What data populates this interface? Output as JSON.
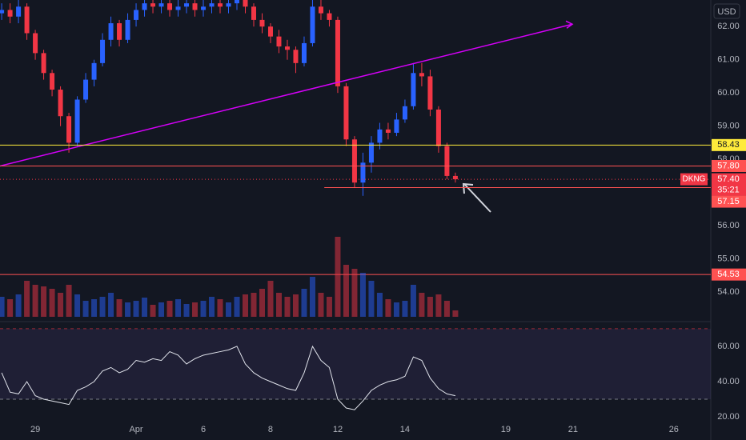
{
  "chart_data": [
    {
      "type": "candlestick",
      "symbol": "DKNG",
      "currency": "USD",
      "countdown": "35:21",
      "x": [
        -1,
        -0.75,
        -0.5,
        -0.25,
        0,
        0.25,
        0.5,
        0.75,
        1,
        1.25,
        1.5,
        1.75,
        2,
        2.25,
        2.5,
        2.75,
        3,
        3.25,
        3.5,
        3.75,
        4,
        4.25,
        4.5,
        4.75,
        5,
        5.25,
        5.5,
        5.75,
        6,
        6.25,
        6.5,
        6.75,
        7,
        7.25,
        7.5,
        7.75,
        8,
        8.25,
        8.5,
        8.75,
        9,
        9.25,
        9.5,
        9.75,
        10,
        10.25,
        10.5,
        10.75,
        11,
        11.25,
        11.5,
        11.75,
        12,
        12.25,
        12.5
      ],
      "open": [
        62.4,
        62.5,
        62.3,
        62.6,
        61.8,
        61.2,
        60.6,
        60.1,
        59.3,
        58.5,
        59.8,
        60.4,
        60.9,
        61.6,
        62.1,
        61.6,
        62.2,
        62.5,
        62.7,
        62.6,
        62.7,
        62.5,
        62.6,
        62.7,
        62.5,
        62.6,
        62.7,
        62.6,
        62.7,
        62.8,
        62.6,
        62.2,
        62.0,
        61.7,
        61.4,
        61.3,
        60.9,
        61.5,
        62.6,
        62.4,
        62.2,
        60.2,
        58.6,
        57.3,
        57.9,
        58.5,
        58.9,
        58.8,
        59.2,
        59.6,
        60.6,
        60.5,
        59.5,
        58.4,
        57.5
      ],
      "high": [
        62.7,
        62.7,
        62.8,
        62.7,
        61.9,
        61.3,
        60.7,
        60.2,
        59.4,
        59.9,
        60.6,
        61.0,
        61.8,
        62.3,
        62.2,
        62.4,
        62.7,
        62.9,
        62.9,
        62.9,
        62.9,
        62.8,
        62.9,
        62.9,
        62.8,
        62.9,
        62.9,
        62.9,
        63.0,
        62.9,
        62.7,
        62.4,
        62.1,
        61.9,
        61.6,
        61.4,
        61.7,
        62.8,
        62.8,
        62.5,
        62.3,
        60.3,
        58.7,
        58.2,
        58.7,
        59.1,
        59.1,
        59.4,
        59.8,
        60.9,
        60.9,
        60.7,
        59.6,
        58.5,
        57.6
      ],
      "low": [
        62.2,
        62.1,
        62.1,
        61.6,
        61.0,
        60.4,
        59.9,
        59.0,
        58.2,
        58.4,
        59.7,
        60.2,
        60.8,
        61.4,
        61.4,
        61.5,
        62.0,
        62.3,
        62.4,
        62.4,
        62.3,
        62.3,
        62.4,
        62.3,
        62.3,
        62.4,
        62.4,
        62.4,
        62.5,
        62.4,
        62.0,
        61.8,
        61.5,
        61.2,
        61.0,
        60.6,
        60.8,
        61.4,
        62.2,
        62.0,
        60.0,
        58.4,
        57.15,
        56.9,
        57.6,
        58.3,
        58.6,
        58.7,
        59.1,
        59.5,
        60.2,
        59.3,
        58.2,
        57.4,
        57.3
      ],
      "close": [
        62.5,
        62.3,
        62.6,
        61.8,
        61.2,
        60.6,
        60.1,
        59.3,
        58.5,
        59.8,
        60.4,
        60.9,
        61.6,
        62.1,
        61.6,
        62.2,
        62.5,
        62.7,
        62.6,
        62.7,
        62.5,
        62.6,
        62.7,
        62.5,
        62.6,
        62.7,
        62.6,
        62.7,
        62.8,
        62.6,
        62.2,
        62.0,
        61.7,
        61.4,
        61.3,
        60.9,
        61.5,
        62.6,
        62.4,
        62.2,
        60.2,
        58.6,
        57.3,
        57.9,
        58.5,
        58.9,
        58.8,
        59.2,
        59.6,
        60.6,
        60.5,
        59.5,
        58.4,
        57.5,
        57.4
      ],
      "colors": {
        "up": "#2962ff",
        "down": "#f23645"
      },
      "last_price": {
        "value": 57.4,
        "label": "57.40"
      },
      "xlim": [
        -1.05,
        20.1
      ],
      "xticks": [
        {
          "value": 0,
          "label": "29"
        },
        {
          "value": 3,
          "label": "Apr"
        },
        {
          "value": 5,
          "label": "6"
        },
        {
          "value": 7,
          "label": "8"
        },
        {
          "value": 9,
          "label": "12"
        },
        {
          "value": 11,
          "label": "14"
        },
        {
          "value": 14,
          "label": "19"
        },
        {
          "value": 16,
          "label": "21"
        },
        {
          "value": 19,
          "label": "26"
        }
      ],
      "ylim": [
        53.16,
        62.8
      ],
      "yticks": [
        {
          "value": 54,
          "label": "54.00"
        },
        {
          "value": 55,
          "label": "55.00"
        },
        {
          "value": 56,
          "label": "56.00"
        },
        {
          "value": 58,
          "label": "58.00"
        },
        {
          "value": 59,
          "label": "59.00"
        },
        {
          "value": 60,
          "label": "60.00"
        },
        {
          "value": 61,
          "label": "61.00"
        },
        {
          "value": 62,
          "label": "62.00"
        }
      ],
      "levels": [
        {
          "value": 58.43,
          "label": "58.43",
          "color": "#ffeb3b"
        },
        {
          "value": 57.8,
          "label": "57.80",
          "color": "#ff5252"
        },
        {
          "value": 57.15,
          "label": "57.15",
          "color": "#ff5252",
          "from": 8.6
        },
        {
          "value": 54.53,
          "label": "54.53",
          "color": "#ff5252"
        }
      ],
      "trendline": {
        "x": [
          -1.05,
          15.98
        ],
        "y": [
          57.8,
          62.07
        ],
        "color": "#d500f9"
      }
    },
    {
      "type": "bar",
      "values": [
        25,
        22,
        28,
        45,
        40,
        38,
        35,
        30,
        40,
        28,
        20,
        22,
        25,
        30,
        22,
        18,
        20,
        24,
        15,
        18,
        20,
        22,
        16,
        18,
        20,
        25,
        22,
        18,
        25,
        28,
        30,
        35,
        45,
        30,
        25,
        28,
        35,
        50,
        30,
        25,
        100,
        65,
        60,
        55,
        45,
        30,
        22,
        18,
        20,
        40,
        30,
        25,
        28,
        20,
        8
      ],
      "ylim": [
        0,
        110
      ]
    },
    {
      "type": "line",
      "color": "#e0e3eb",
      "values": [
        45,
        34,
        33,
        40,
        32,
        30,
        29,
        28,
        27,
        35,
        37,
        40,
        46,
        48,
        45,
        47,
        52,
        51,
        53,
        52,
        57,
        55,
        50,
        53,
        55,
        56,
        57,
        58,
        60,
        50,
        45,
        42,
        40,
        38,
        36,
        35,
        45,
        60,
        52,
        48,
        30,
        25,
        24,
        29,
        35,
        38,
        40,
        41,
        43,
        54,
        52,
        42,
        36,
        33,
        32
      ],
      "ylim": [
        18.2,
        73.6
      ],
      "yticks": [
        {
          "value": 20,
          "label": "20.00"
        },
        {
          "value": 40,
          "label": "40.00"
        },
        {
          "value": 60,
          "label": "60.00"
        }
      ],
      "bands": [
        30,
        70
      ]
    }
  ]
}
